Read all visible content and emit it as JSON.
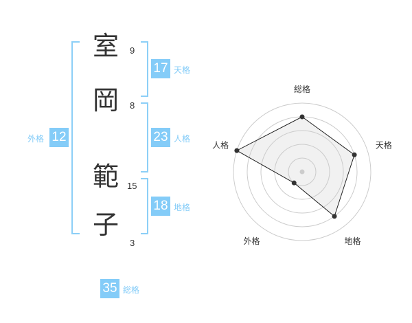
{
  "name": {
    "chars": [
      {
        "char": "室",
        "strokes": "9"
      },
      {
        "char": "岡",
        "strokes": "8"
      },
      {
        "char": "範",
        "strokes": "15"
      },
      {
        "char": "子",
        "strokes": "3"
      }
    ]
  },
  "fortunes": {
    "tenkaku": {
      "label": "天格",
      "value": "17"
    },
    "jinkaku": {
      "label": "人格",
      "value": "23"
    },
    "chikaku": {
      "label": "地格",
      "value": "18"
    },
    "gaikaku": {
      "label": "外格",
      "value": "12"
    },
    "soukaku": {
      "label": "総格",
      "value": "35"
    }
  },
  "colors": {
    "accent": "#84ccf8",
    "text": "#333333"
  },
  "chart_data": {
    "type": "radar",
    "axes": [
      "総格",
      "天格",
      "地格",
      "外格",
      "人格"
    ],
    "values": [
      4,
      4,
      4,
      1,
      5
    ],
    "range": [
      0,
      5
    ],
    "rings": 5
  }
}
